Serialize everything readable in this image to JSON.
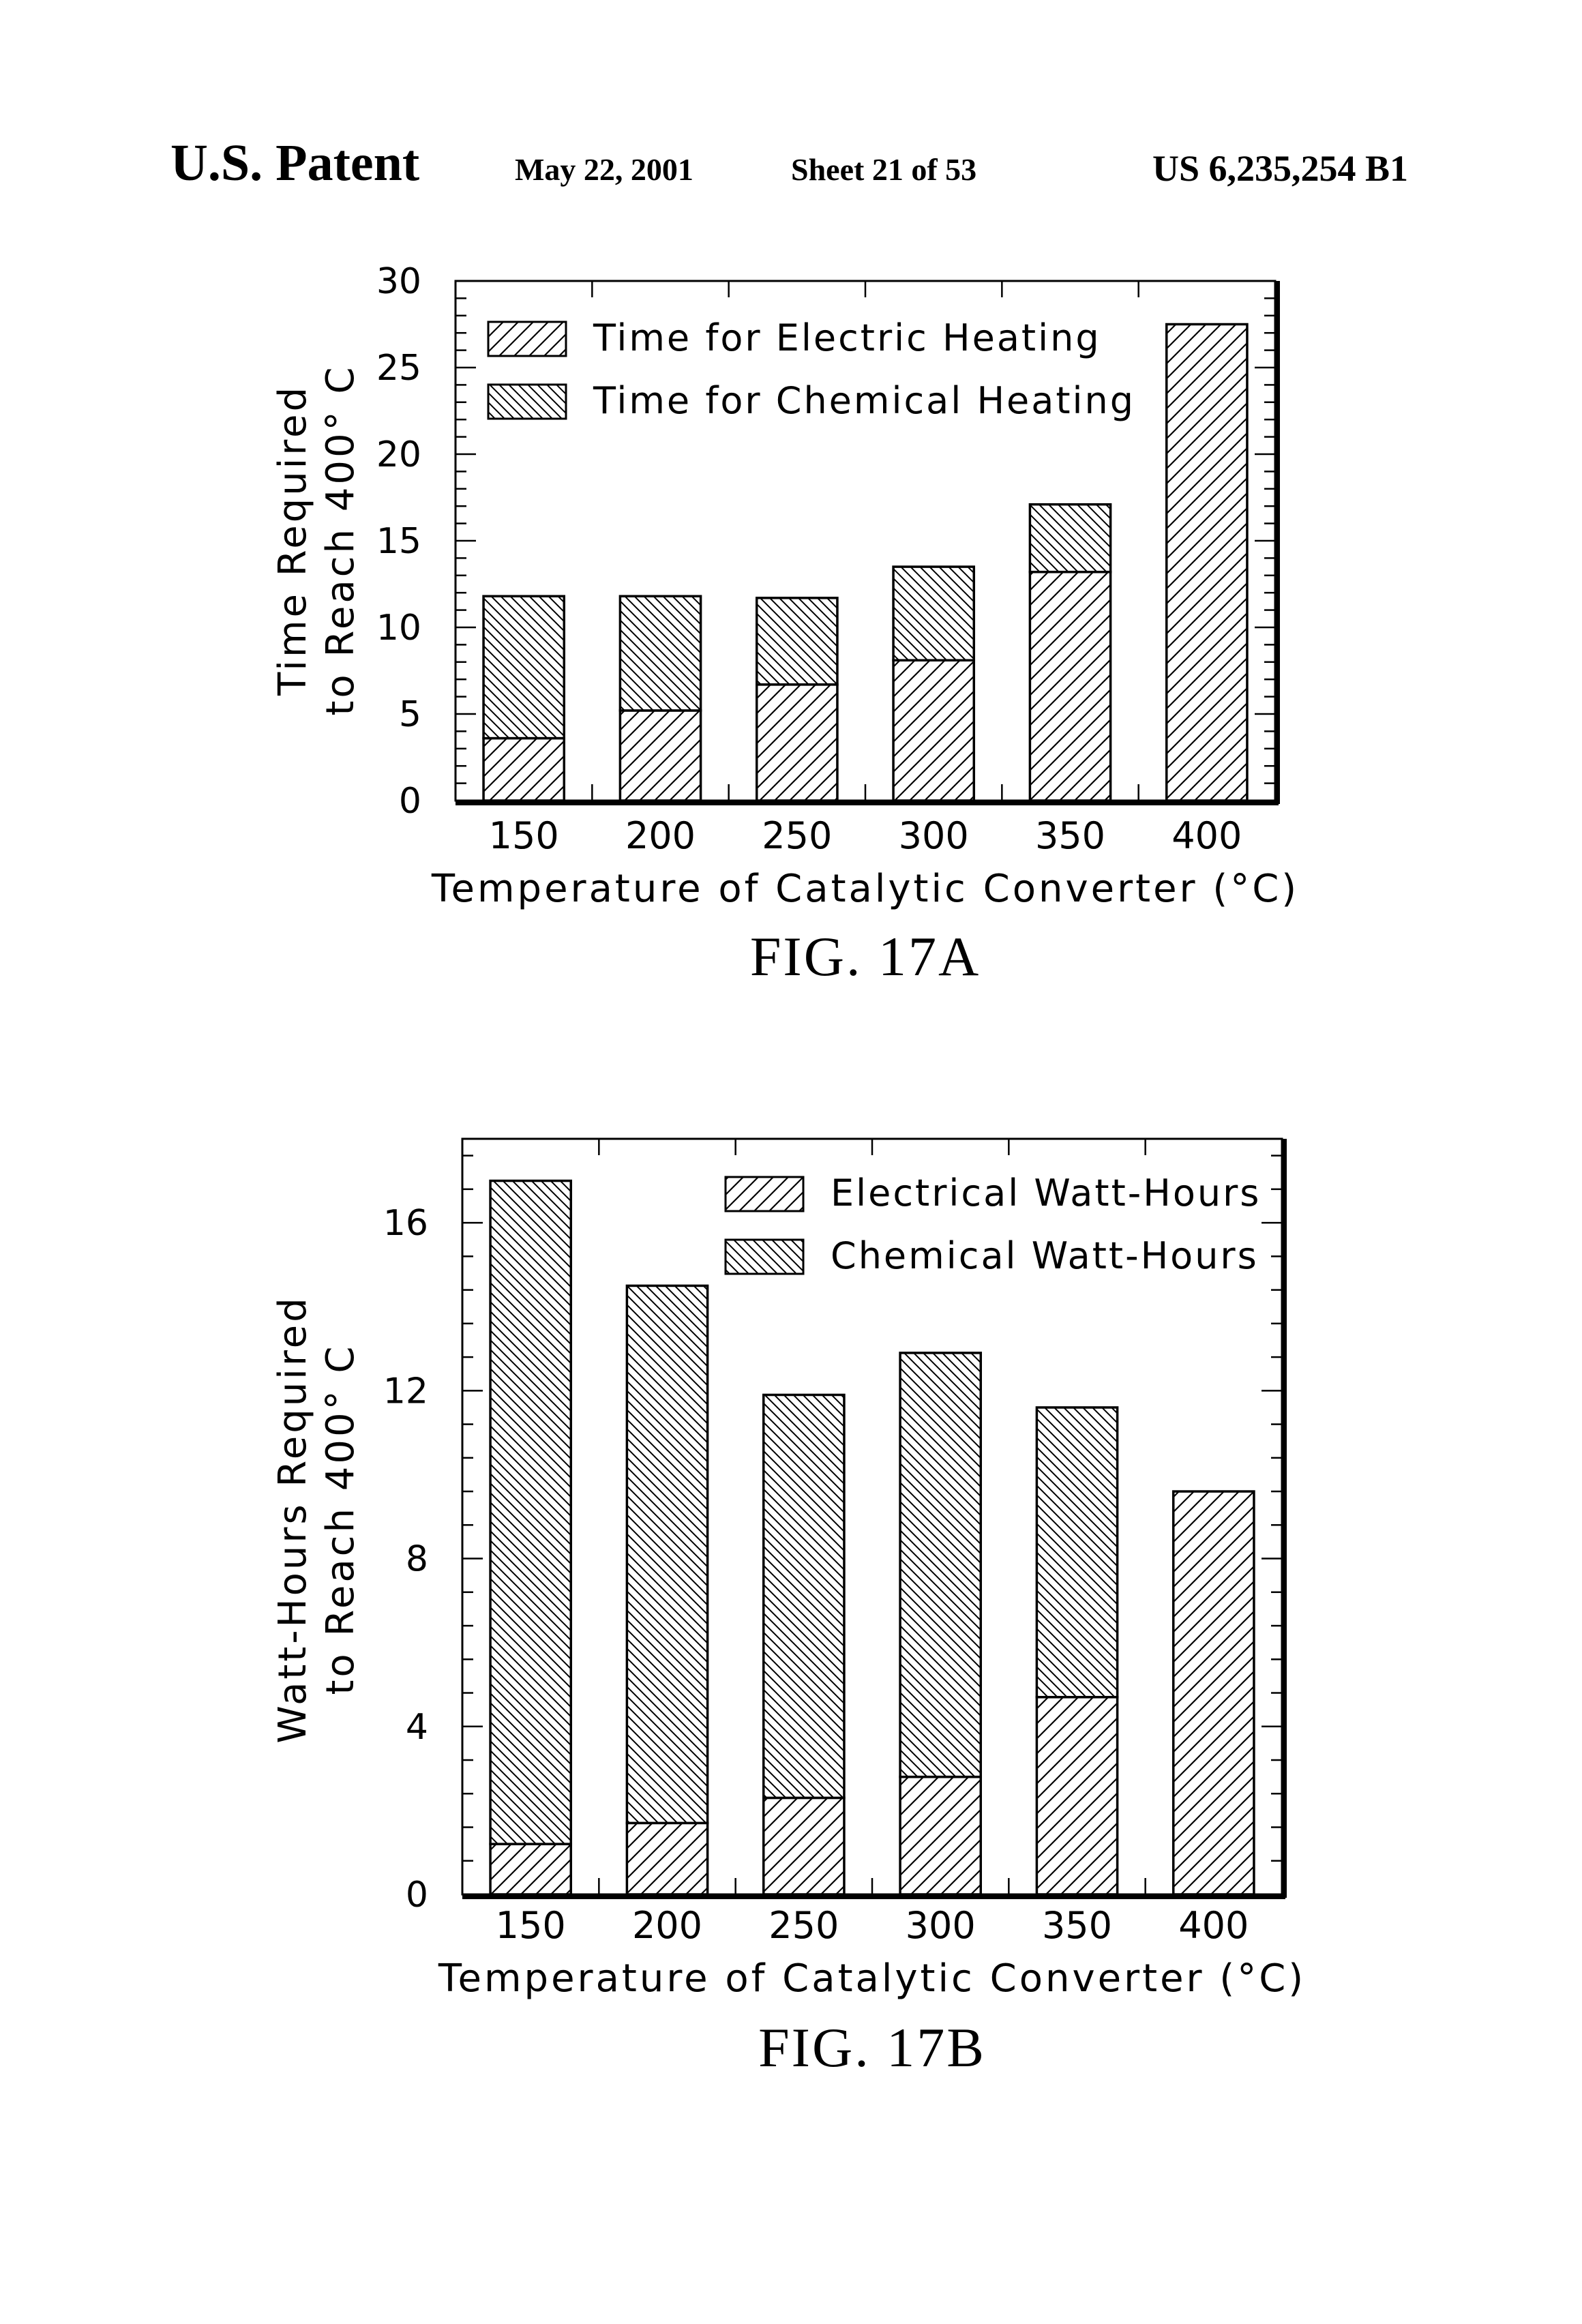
{
  "header": {
    "left": "U.S. Patent",
    "date": "May 22, 2001",
    "sheet": "Sheet 21 of 53",
    "patent_number": "US 6,235,254 B1"
  },
  "chart_data": [
    {
      "type": "bar",
      "stacked": true,
      "figure_label": "FIG. 17A",
      "title": "",
      "xlabel": "Temperature of Catalytic Converter (°C)",
      "ylabel_line1": "Time Required",
      "ylabel_line2": "to Reach 400° C",
      "categories": [
        "150",
        "200",
        "250",
        "300",
        "350",
        "400"
      ],
      "ylim": [
        0,
        30
      ],
      "yticks": [
        "0",
        "5",
        "10",
        "15",
        "20",
        "25",
        "30"
      ],
      "legend_position": "top-left",
      "series": [
        {
          "name": "Time for Electric Heating",
          "pattern": "hatch-forward",
          "values": [
            3.6,
            5.2,
            6.7,
            8.1,
            13.2,
            27.5
          ]
        },
        {
          "name": "Time for Chemical Heating",
          "pattern": "hatch-back",
          "values": [
            8.2,
            6.6,
            5.0,
            5.4,
            3.9,
            0
          ]
        }
      ]
    },
    {
      "type": "bar",
      "stacked": true,
      "figure_label": "FIG. 17B",
      "title": "",
      "xlabel": "Temperature of Catalytic Converter (°C)",
      "ylabel_line1": "Watt-Hours Required",
      "ylabel_line2": "to Reach 400° C",
      "categories": [
        "150",
        "200",
        "250",
        "300",
        "350",
        "400"
      ],
      "ylim": [
        0,
        18
      ],
      "yticks": [
        "0",
        "4",
        "8",
        "12",
        "16"
      ],
      "legend_position": "top-right",
      "series": [
        {
          "name": "Electrical Watt-Hours",
          "pattern": "hatch-forward",
          "values": [
            1.2,
            1.7,
            2.3,
            2.8,
            4.7,
            9.6
          ]
        },
        {
          "name": "Chemical Watt-Hours",
          "pattern": "hatch-back",
          "values": [
            15.8,
            12.8,
            9.6,
            10.1,
            6.9,
            0
          ]
        }
      ]
    }
  ]
}
